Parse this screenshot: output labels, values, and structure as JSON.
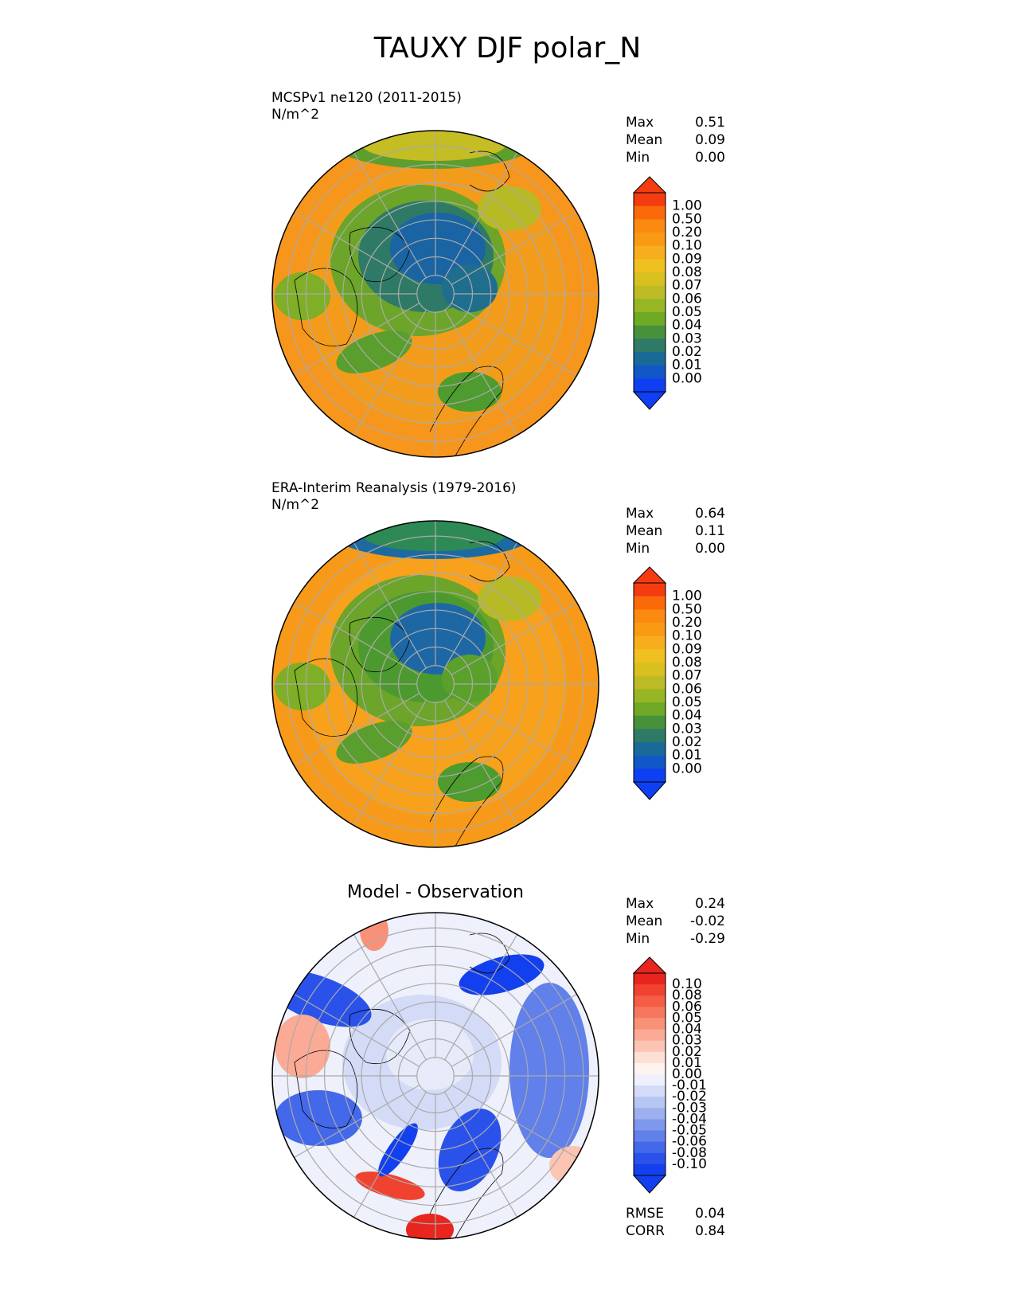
{
  "figure": {
    "title": "TAUXY DJF polar_N"
  },
  "panels": [
    {
      "id": "model",
      "title": "MCSPv1 ne120 (2011-2015)",
      "units": "N/m^2",
      "stats": [
        {
          "label": "Max",
          "value": "0.51"
        },
        {
          "label": "Mean",
          "value": "0.09"
        },
        {
          "label": "Min",
          "value": "0.00"
        }
      ],
      "colorbar": {
        "ticks": [
          "1.00",
          "0.50",
          "0.20",
          "0.10",
          "0.09",
          "0.08",
          "0.07",
          "0.06",
          "0.05",
          "0.04",
          "0.03",
          "0.02",
          "0.01",
          "0.00"
        ],
        "colors": [
          "#f53c10",
          "#fb6a0a",
          "#fb8a10",
          "#f99a14",
          "#f7ad1e",
          "#f0c021",
          "#d8c01f",
          "#bdbb25",
          "#96b723",
          "#6fa925",
          "#47913b",
          "#2e7a66",
          "#1a6a98",
          "#1257c8",
          "#0f3ff2"
        ],
        "extend_top": "#f53c10",
        "extend_bottom": "#0f3ff2"
      }
    },
    {
      "id": "obs",
      "title": "ERA-Interim Reanalysis (1979-2016)",
      "units": "N/m^2",
      "stats": [
        {
          "label": "Max",
          "value": "0.64"
        },
        {
          "label": "Mean",
          "value": "0.11"
        },
        {
          "label": "Min",
          "value": "0.00"
        }
      ],
      "colorbar": {
        "ticks": [
          "1.00",
          "0.50",
          "0.20",
          "0.10",
          "0.09",
          "0.08",
          "0.07",
          "0.06",
          "0.05",
          "0.04",
          "0.03",
          "0.02",
          "0.01",
          "0.00"
        ],
        "colors": [
          "#f53c10",
          "#fb6a0a",
          "#fb8a10",
          "#f99a14",
          "#f7ad1e",
          "#f0c021",
          "#d8c01f",
          "#bdbb25",
          "#96b723",
          "#6fa925",
          "#47913b",
          "#2e7a66",
          "#1a6a98",
          "#1257c8",
          "#0f3ff2"
        ],
        "extend_top": "#f53c10",
        "extend_bottom": "#0f3ff2"
      }
    },
    {
      "id": "diff",
      "title": "Model - Observation",
      "stats": [
        {
          "label": "Max",
          "value": "0.24"
        },
        {
          "label": "Mean",
          "value": "-0.02"
        },
        {
          "label": "Min",
          "value": "-0.29"
        }
      ],
      "metrics": [
        {
          "label": "RMSE",
          "value": "0.04"
        },
        {
          "label": "CORR",
          "value": "0.84"
        }
      ],
      "colorbar": {
        "ticks": [
          "0.10",
          "0.08",
          "0.06",
          "0.05",
          "0.04",
          "0.03",
          "0.02",
          "0.01",
          "0.00",
          "-0.01",
          "-0.02",
          "-0.03",
          "-0.04",
          "-0.05",
          "-0.06",
          "-0.08",
          "-0.10"
        ],
        "colors": [
          "#e8251e",
          "#f0432f",
          "#f55d45",
          "#f7775e",
          "#f99178",
          "#fbab95",
          "#fcc4b3",
          "#fde0d5",
          "#fff3ee",
          "#eef0fb",
          "#d3dbf7",
          "#b8c6f3",
          "#9cb0ef",
          "#7f98ec",
          "#6180ea",
          "#4368ea",
          "#2a52ea",
          "#1340ee"
        ],
        "extend_top": "#e8251e",
        "extend_bottom": "#1340ee"
      }
    }
  ],
  "chart_data": [
    {
      "type": "heatmap",
      "projection": "north polar stereographic",
      "title": "MCSPv1 ne120 (2011-2015)",
      "units": "N/m^2",
      "stats": {
        "Max": 0.51,
        "Mean": 0.09,
        "Min": 0.0
      },
      "levels": [
        0.0,
        0.01,
        0.02,
        0.03,
        0.04,
        0.05,
        0.06,
        0.07,
        0.08,
        0.09,
        0.1,
        0.2,
        0.5,
        1.0
      ],
      "latitude_circles": [
        80,
        70,
        60,
        50,
        40,
        30,
        20,
        10
      ],
      "meridians_deg": [
        0,
        30,
        60,
        90,
        120,
        150,
        180,
        210,
        240,
        270,
        300,
        330
      ],
      "grid": true
    },
    {
      "type": "heatmap",
      "projection": "north polar stereographic",
      "title": "ERA-Interim Reanalysis (1979-2016)",
      "units": "N/m^2",
      "stats": {
        "Max": 0.64,
        "Mean": 0.11,
        "Min": 0.0
      },
      "levels": [
        0.0,
        0.01,
        0.02,
        0.03,
        0.04,
        0.05,
        0.06,
        0.07,
        0.08,
        0.09,
        0.1,
        0.2,
        0.5,
        1.0
      ],
      "latitude_circles": [
        80,
        70,
        60,
        50,
        40,
        30,
        20,
        10
      ],
      "meridians_deg": [
        0,
        30,
        60,
        90,
        120,
        150,
        180,
        210,
        240,
        270,
        300,
        330
      ],
      "grid": true
    },
    {
      "type": "heatmap",
      "projection": "north polar stereographic",
      "title": "Model - Observation",
      "stats": {
        "Max": 0.24,
        "Mean": -0.02,
        "Min": -0.29
      },
      "metrics": {
        "RMSE": 0.04,
        "CORR": 0.84
      },
      "levels": [
        -0.1,
        -0.08,
        -0.06,
        -0.05,
        -0.04,
        -0.03,
        -0.02,
        -0.01,
        0.0,
        0.01,
        0.02,
        0.03,
        0.04,
        0.05,
        0.06,
        0.08,
        0.1
      ],
      "latitude_circles": [
        80,
        70,
        60,
        50,
        40,
        30,
        20,
        10
      ],
      "meridians_deg": [
        0,
        30,
        60,
        90,
        120,
        150,
        180,
        210,
        240,
        270,
        300,
        330
      ],
      "grid": true
    }
  ]
}
